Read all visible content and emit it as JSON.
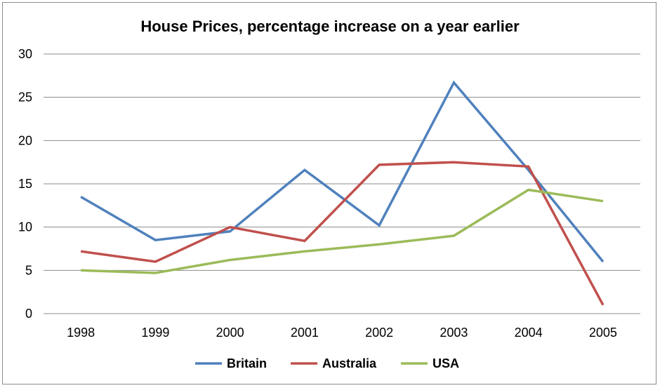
{
  "chart_data": {
    "type": "line",
    "title": "House Prices, percentage increase on a year earlier",
    "xlabel": "",
    "ylabel": "",
    "ylim": [
      0,
      30
    ],
    "yticks": [
      "0",
      "5",
      "10",
      "15",
      "20",
      "25",
      "30"
    ],
    "categories": [
      "1998",
      "1999",
      "2000",
      "2001",
      "2002",
      "2003",
      "2004",
      "2005"
    ],
    "grid": true,
    "legend_position": "bottom",
    "series": [
      {
        "name": "Britain",
        "color": "#4f81bd",
        "values": [
          13.5,
          8.5,
          9.5,
          16.6,
          10.2,
          26.7,
          16.6,
          6.0
        ]
      },
      {
        "name": "Australia",
        "color": "#c0504d",
        "values": [
          7.2,
          6.0,
          10.0,
          8.4,
          17.2,
          17.5,
          17.0,
          1.0
        ]
      },
      {
        "name": "USA",
        "color": "#9bbb59",
        "values": [
          5.0,
          4.7,
          6.2,
          7.2,
          8.0,
          9.0,
          14.3,
          13.0
        ]
      }
    ]
  }
}
